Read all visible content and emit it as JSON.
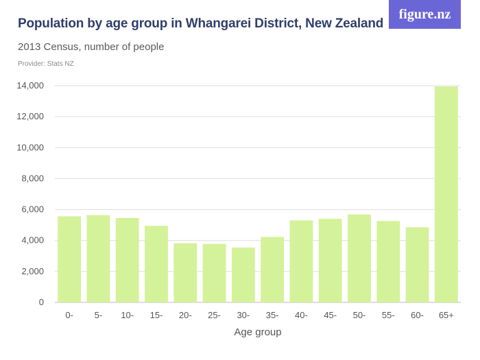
{
  "header": {
    "title": "Population by age group in Whangarei District, New Zealand",
    "subtitle": "2013 Census, number of people",
    "provider": "Provider: Stats NZ",
    "logo": "figure.nz"
  },
  "colors": {
    "bar": "#d4f299",
    "grid": "#dddddd",
    "title": "#2f3f6b",
    "logo_bg": "#6b66d6"
  },
  "chart_data": {
    "type": "bar",
    "title": "Population by age group in Whangarei District, New Zealand",
    "subtitle": "2013 Census, number of people",
    "xlabel": "Age group",
    "ylabel": "",
    "categories": [
      "0-",
      "5-",
      "10-",
      "15-",
      "20-",
      "25-",
      "30-",
      "35-",
      "40-",
      "45-",
      "50-",
      "55-",
      "60-",
      "65+"
    ],
    "values": [
      5560,
      5640,
      5450,
      4950,
      3820,
      3780,
      3540,
      4230,
      5300,
      5400,
      5680,
      5260,
      4850,
      13950
    ],
    "ylim": [
      0,
      14000
    ],
    "yticks": [
      0,
      2000,
      4000,
      6000,
      8000,
      10000,
      12000,
      14000
    ],
    "ytick_labels": [
      "0",
      "2,000",
      "4,000",
      "6,000",
      "8,000",
      "10,000",
      "12,000",
      "14,000"
    ],
    "grid": true,
    "legend": "none"
  }
}
